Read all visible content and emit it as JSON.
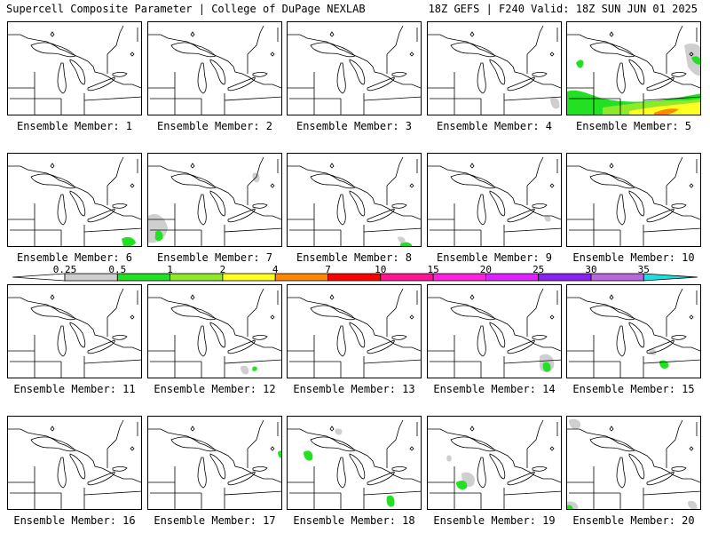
{
  "header": {
    "left_title": "Supercell Composite Parameter | College of DuPage NEXLAB",
    "right_title": "18Z GEFS | F240 Valid: 18Z SUN JUN 01 2025"
  },
  "legend": {
    "thresholds": [
      "0.25",
      "0.5",
      "1",
      "2",
      "4",
      "7",
      "10",
      "15",
      "20",
      "25",
      "30",
      "35"
    ],
    "colors": [
      "#cfcfcf",
      "#22e022",
      "#8fe82a",
      "#ffff22",
      "#ff8800",
      "#ff0000",
      "#ff1493",
      "#ff22dd",
      "#dd22ff",
      "#8822ee",
      "#bb66dd",
      "#22dddd"
    ]
  },
  "panels": [
    {
      "label": "Ensemble Member: 1"
    },
    {
      "label": "Ensemble Member: 2"
    },
    {
      "label": "Ensemble Member: 3"
    },
    {
      "label": "Ensemble Member: 4"
    },
    {
      "label": "Ensemble Member: 5"
    },
    {
      "label": "Ensemble Member: 6"
    },
    {
      "label": "Ensemble Member: 7"
    },
    {
      "label": "Ensemble Member: 8"
    },
    {
      "label": "Ensemble Member: 9"
    },
    {
      "label": "Ensemble Member: 10"
    },
    {
      "label": "Ensemble Member: 11"
    },
    {
      "label": "Ensemble Member: 12"
    },
    {
      "label": "Ensemble Member: 13"
    },
    {
      "label": "Ensemble Member: 14"
    },
    {
      "label": "Ensemble Member: 15"
    },
    {
      "label": "Ensemble Member: 16"
    },
    {
      "label": "Ensemble Member: 17"
    },
    {
      "label": "Ensemble Member: 18"
    },
    {
      "label": "Ensemble Member: 19"
    },
    {
      "label": "Ensemble Member: 20"
    }
  ]
}
